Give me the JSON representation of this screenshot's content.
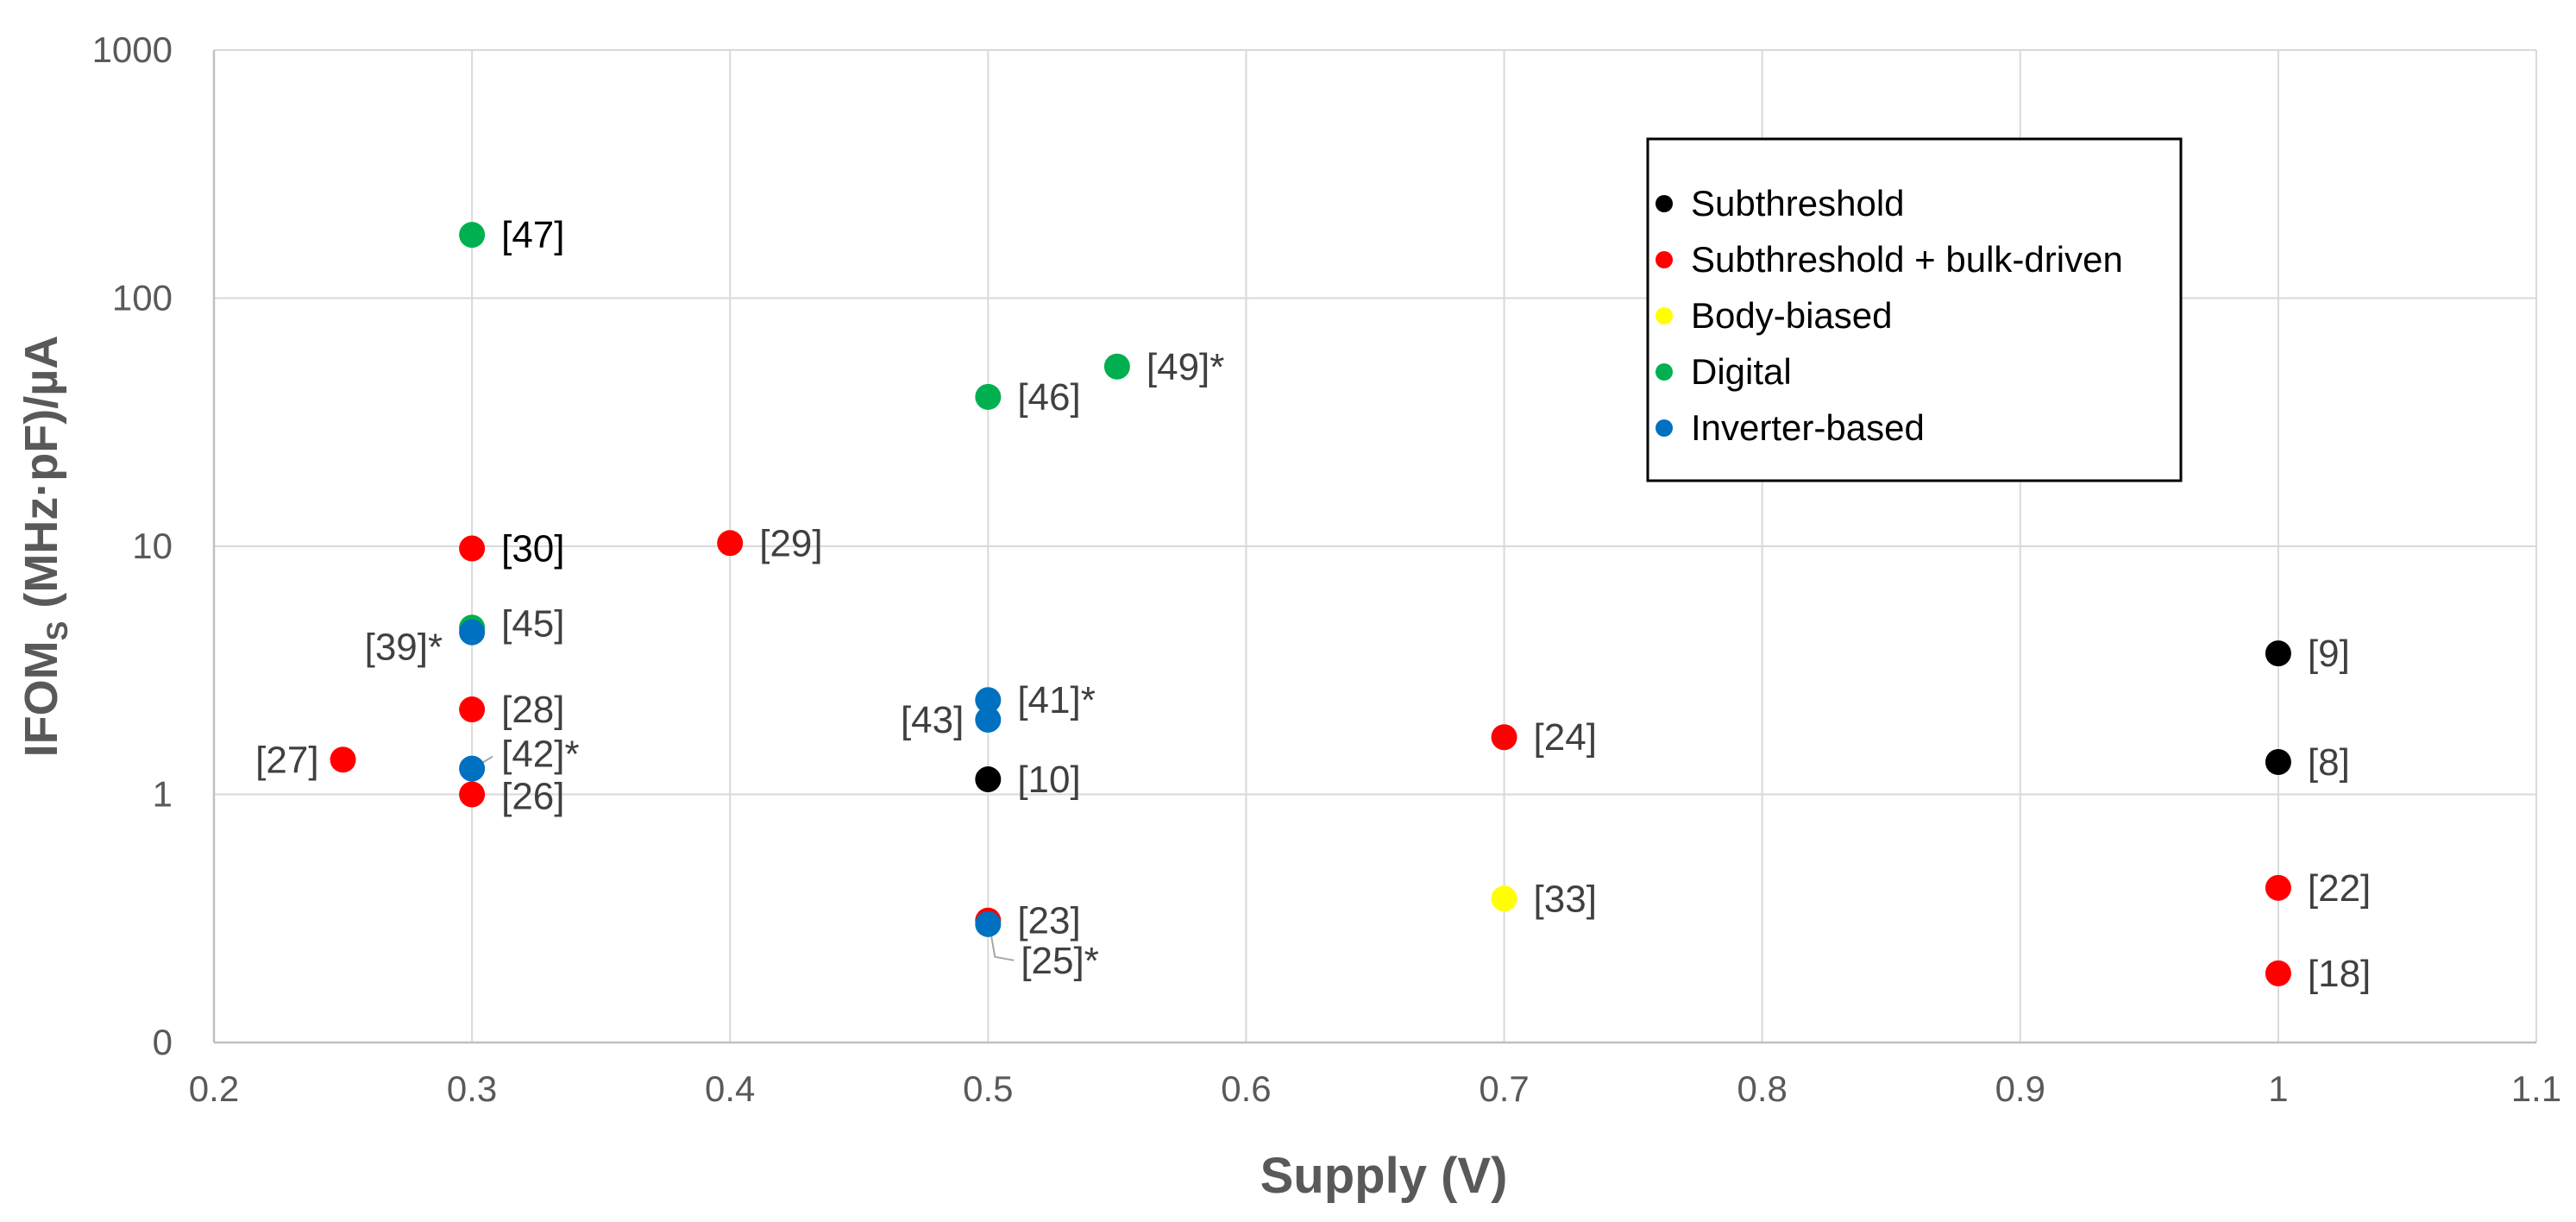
{
  "chart_data": {
    "type": "scatter",
    "title": "",
    "xlabel": "Supply (V)",
    "ylabel_main": "IFOM",
    "ylabel_sub": "S",
    "ylabel_rest": " (MHz·pF)/µA",
    "xlim": [
      0.2,
      1.1
    ],
    "ylim_log10": [
      -1,
      3
    ],
    "y_scale": "log",
    "x_ticks": [
      0.2,
      0.3,
      0.4,
      0.5,
      0.6,
      0.7,
      0.8,
      0.9,
      1,
      1.1
    ],
    "x_tick_labels": [
      "0.2",
      "0.3",
      "0.4",
      "0.5",
      "0.6",
      "0.7",
      "0.8",
      "0.9",
      "1",
      "1.1"
    ],
    "y_ticks": [
      0.1,
      1,
      10,
      100,
      1000
    ],
    "y_tick_labels": [
      "0",
      "1",
      "10",
      "100",
      "1000"
    ],
    "grid": true,
    "legend_position": "top-right",
    "series": [
      {
        "name": "Subthreshold",
        "color": "#000000"
      },
      {
        "name": "Subthreshold + bulk-driven",
        "color": "#ff0000"
      },
      {
        "name": "Body-biased",
        "color": "#ffff00"
      },
      {
        "name": "Digital",
        "color": "#00b050"
      },
      {
        "name": "Inverter-based",
        "color": "#0070c0"
      }
    ],
    "points": [
      {
        "label": "[47]",
        "x": 0.3,
        "y": 180,
        "series": "Digital",
        "label_side": "right"
      },
      {
        "label": "[46]",
        "x": 0.5,
        "y": 40,
        "series": "Digital",
        "label_side": "right"
      },
      {
        "label": "[49]*",
        "x": 0.55,
        "y": 53,
        "series": "Digital",
        "label_side": "right"
      },
      {
        "label": "[30]",
        "x": 0.3,
        "y": 9.8,
        "series": "Subthreshold + bulk-driven",
        "label_side": "right"
      },
      {
        "label": "[29]",
        "x": 0.4,
        "y": 10.3,
        "series": "Subthreshold + bulk-driven",
        "label_side": "right"
      },
      {
        "label": "[45]",
        "x": 0.3,
        "y": 4.7,
        "series": "Digital",
        "label_side": "right"
      },
      {
        "label": "[39]*",
        "x": 0.3,
        "y": 4.5,
        "series": "Inverter-based",
        "label_side": "left"
      },
      {
        "label": "[28]",
        "x": 0.3,
        "y": 2.2,
        "series": "Subthreshold + bulk-driven",
        "label_side": "right"
      },
      {
        "label": "[42]*",
        "x": 0.3,
        "y": 1.27,
        "series": "Inverter-based",
        "label_side": "right-callout"
      },
      {
        "label": "[26]",
        "x": 0.3,
        "y": 1.0,
        "series": "Subthreshold + bulk-driven",
        "label_side": "right"
      },
      {
        "label": "[27]",
        "x": 0.25,
        "y": 1.38,
        "series": "Subthreshold + bulk-driven",
        "label_side": "left"
      },
      {
        "label": "[41]*",
        "x": 0.5,
        "y": 2.4,
        "series": "Inverter-based",
        "label_side": "right"
      },
      {
        "label": "[43]",
        "x": 0.5,
        "y": 2.0,
        "series": "Inverter-based",
        "label_side": "left"
      },
      {
        "label": "[10]",
        "x": 0.5,
        "y": 1.15,
        "series": "Subthreshold",
        "label_side": "right"
      },
      {
        "label": "[23]",
        "x": 0.5,
        "y": 0.31,
        "series": "Subthreshold + bulk-driven",
        "label_side": "right"
      },
      {
        "label": "[25]*",
        "x": 0.5,
        "y": 0.3,
        "series": "Inverter-based",
        "label_side": "below-callout"
      },
      {
        "label": "[24]",
        "x": 0.7,
        "y": 1.7,
        "series": "Subthreshold + bulk-driven",
        "label_side": "right"
      },
      {
        "label": "[33]",
        "x": 0.7,
        "y": 0.38,
        "series": "Body-biased",
        "label_side": "right"
      },
      {
        "label": "[9]",
        "x": 1.0,
        "y": 3.7,
        "series": "Subthreshold",
        "label_side": "right"
      },
      {
        "label": "[8]",
        "x": 1.0,
        "y": 1.35,
        "series": "Subthreshold",
        "label_side": "right"
      },
      {
        "label": "[22]",
        "x": 1.0,
        "y": 0.42,
        "series": "Subthreshold + bulk-driven",
        "label_side": "right"
      },
      {
        "label": "[18]",
        "x": 1.0,
        "y": 0.19,
        "series": "Subthreshold + bulk-driven",
        "label_side": "right"
      }
    ]
  }
}
